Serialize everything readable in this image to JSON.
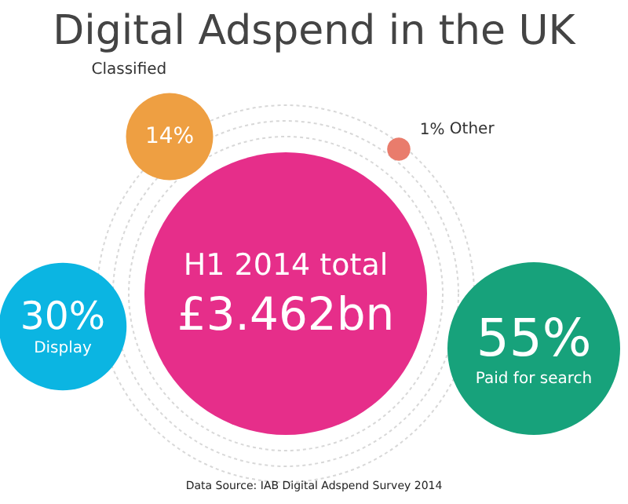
{
  "chart_data": {
    "type": "other",
    "title": "Digital Adspend in the UK",
    "categories": [
      "Paid for search",
      "Display",
      "Classified",
      "Other"
    ],
    "values": [
      55,
      30,
      14,
      1
    ],
    "value_labels": [
      "55%",
      "30%",
      "14%",
      "1%"
    ],
    "colors": [
      "#17a27b",
      "#0bb5e2",
      "#ee9f42",
      "#e97c6c"
    ],
    "annotations": [
      "H1 2014 total",
      "£3.462bn",
      "Data Source: IAB Digital Adspend Survey 2014"
    ]
  }
}
